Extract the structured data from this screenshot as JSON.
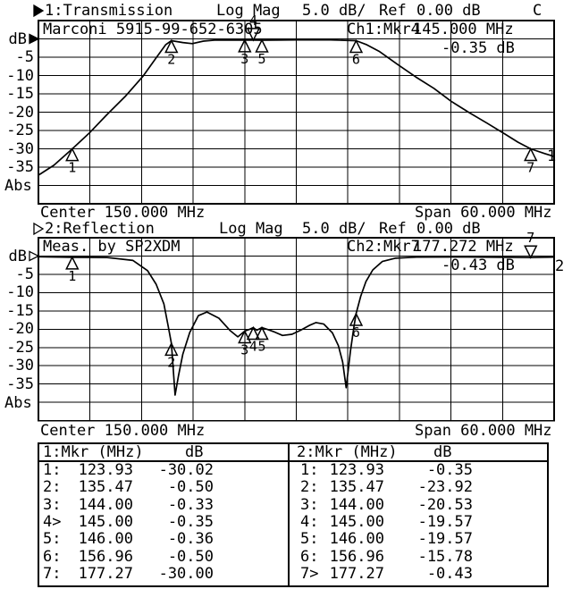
{
  "chart_data": [
    {
      "type": "line",
      "title": "1:Transmission",
      "format": "Log Mag",
      "scale_per_div": "5.0 dB/",
      "ref_label": "Ref",
      "ref_value": "0.00 dB",
      "corr_flag": "C",
      "channel_active": true,
      "annotation": "Marconi 5915-99-652-6305",
      "readout": {
        "id": "Ch1:Mkr4",
        "freq": "145.000 MHz",
        "level": "-0.35 dB"
      },
      "ylabel": "dB",
      "abs_label": "Abs",
      "yticks": [
        -5,
        -10,
        -15,
        -20,
        -25,
        -30,
        -35
      ],
      "y_top_dB": 5,
      "y_bottom_dB": -45,
      "scale_dB_per_div": 5,
      "x_range_MHz": [
        120,
        180
      ],
      "x_divisions": 10,
      "y_divisions": 10,
      "center_label": "Center 150.000 MHz",
      "span_label": "Span 60.000 MHz",
      "trace_number": "1",
      "markers": [
        {
          "n": "1",
          "MHz": 123.93,
          "dB": -30.02
        },
        {
          "n": "2",
          "MHz": 135.47,
          "dB": -0.5
        },
        {
          "n": "3",
          "MHz": 144.0,
          "dB": -0.33
        },
        {
          "n": "4",
          "MHz": 145.0,
          "dB": -0.35,
          "active": true
        },
        {
          "n": "5",
          "MHz": 146.0,
          "dB": -0.36
        },
        {
          "n": "6",
          "MHz": 156.96,
          "dB": -0.5
        },
        {
          "n": "7",
          "MHz": 177.27,
          "dB": -30.0
        }
      ],
      "trace": [
        [
          120,
          -37.2
        ],
        [
          121.8,
          -34.5
        ],
        [
          123.93,
          -30.02
        ],
        [
          126,
          -25.5
        ],
        [
          128,
          -20.6
        ],
        [
          130.1,
          -15.7
        ],
        [
          132.2,
          -10.1
        ],
        [
          133.7,
          -5.2
        ],
        [
          134.8,
          -1.6
        ],
        [
          135.47,
          -0.5
        ],
        [
          136.8,
          -1.0
        ],
        [
          137.9,
          -1.3
        ],
        [
          139.2,
          -0.6
        ],
        [
          140.5,
          -0.35
        ],
        [
          144,
          -0.33
        ],
        [
          145,
          -0.35
        ],
        [
          146,
          -0.36
        ],
        [
          150,
          -0.3
        ],
        [
          154,
          -0.3
        ],
        [
          156.96,
          -0.5
        ],
        [
          158.2,
          -1.6
        ],
        [
          159.7,
          -3.5
        ],
        [
          161.8,
          -7
        ],
        [
          163.9,
          -10.4
        ],
        [
          166,
          -13.5
        ],
        [
          168,
          -17
        ],
        [
          170.1,
          -20.1
        ],
        [
          172.2,
          -23
        ],
        [
          174.3,
          -26
        ],
        [
          175.8,
          -28.2
        ],
        [
          177.27,
          -30
        ],
        [
          178.9,
          -31.3
        ],
        [
          180,
          -32.1
        ]
      ]
    },
    {
      "type": "line",
      "title": "2:Reflection",
      "format": "Log Mag",
      "scale_per_div": "5.0 dB/",
      "ref_label": "Ref",
      "ref_value": "0.00 dB",
      "corr_flag": "",
      "channel_active": false,
      "annotation": "Meas. by SP2XDM",
      "readout": {
        "id": "Ch2:Mkr7",
        "freq": "177.272 MHz",
        "level": "-0.43 dB"
      },
      "ylabel": "dB",
      "abs_label": "Abs",
      "yticks": [
        -5,
        -10,
        -15,
        -20,
        -25,
        -30,
        -35
      ],
      "y_top_dB": 5,
      "y_bottom_dB": -45,
      "scale_dB_per_div": 5,
      "x_range_MHz": [
        120,
        180
      ],
      "x_divisions": 10,
      "y_divisions": 10,
      "center_label": "Center 150.000 MHz",
      "span_label": "Span 60.000 MHz",
      "trace_number": "2",
      "markers": [
        {
          "n": "1",
          "MHz": 123.93,
          "dB": -0.35
        },
        {
          "n": "2",
          "MHz": 135.47,
          "dB": -23.92
        },
        {
          "n": "3",
          "MHz": 144.0,
          "dB": -20.53
        },
        {
          "n": "4",
          "MHz": 145.0,
          "dB": -19.57
        },
        {
          "n": "5",
          "MHz": 146.0,
          "dB": -19.57
        },
        {
          "n": "6",
          "MHz": 156.96,
          "dB": -15.78
        },
        {
          "n": "7",
          "MHz": 177.27,
          "dB": -0.43,
          "active": true
        }
      ],
      "trace": [
        [
          120,
          -0.2
        ],
        [
          123.93,
          -0.35
        ],
        [
          128,
          -0.4
        ],
        [
          131,
          -1.2
        ],
        [
          132.7,
          -4
        ],
        [
          133.7,
          -7.7
        ],
        [
          134.6,
          -13.1
        ],
        [
          135.1,
          -19.2
        ],
        [
          135.47,
          -23.92
        ],
        [
          135.9,
          -38
        ],
        [
          136.3,
          -32.6
        ],
        [
          136.8,
          -26.8
        ],
        [
          137.6,
          -20.9
        ],
        [
          138.6,
          -16.3
        ],
        [
          139.6,
          -15.3
        ],
        [
          141,
          -17
        ],
        [
          142.3,
          -20.4
        ],
        [
          143.2,
          -22.1
        ],
        [
          144,
          -20.53
        ],
        [
          144.6,
          -20
        ],
        [
          145,
          -19.57
        ],
        [
          145.4,
          -20.3
        ],
        [
          146,
          -19.57
        ],
        [
          146.8,
          -20.2
        ],
        [
          147.5,
          -20.8
        ],
        [
          148.4,
          -21.7
        ],
        [
          149.5,
          -21.4
        ],
        [
          150.5,
          -20.3
        ],
        [
          151.5,
          -19
        ],
        [
          152.3,
          -18.2
        ],
        [
          153.2,
          -18.6
        ],
        [
          154.2,
          -21
        ],
        [
          154.9,
          -24.5
        ],
        [
          155.4,
          -29
        ],
        [
          155.8,
          -36
        ],
        [
          156.3,
          -26
        ],
        [
          156.7,
          -19.5
        ],
        [
          156.96,
          -15.78
        ],
        [
          157.5,
          -11
        ],
        [
          158.1,
          -7
        ],
        [
          158.9,
          -3.8
        ],
        [
          160,
          -1.5
        ],
        [
          161.5,
          -0.6
        ],
        [
          164,
          -0.3
        ],
        [
          170,
          -0.25
        ],
        [
          177.27,
          -0.43
        ],
        [
          180,
          -0.3
        ]
      ]
    }
  ],
  "marker_table": {
    "left": {
      "title": "1:Mkr (MHz)",
      "unit": "dB",
      "rows": [
        [
          "1:",
          "123.93",
          "-30.02"
        ],
        [
          "2:",
          "135.47",
          "-0.50"
        ],
        [
          "3:",
          "144.00",
          "-0.33"
        ],
        [
          "4>",
          "145.00",
          "-0.35"
        ],
        [
          "5:",
          "146.00",
          "-0.36"
        ],
        [
          "6:",
          "156.96",
          "-0.50"
        ],
        [
          "7:",
          "177.27",
          "-30.00"
        ]
      ]
    },
    "right": {
      "title": "2:Mkr (MHz)",
      "unit": "dB",
      "rows": [
        [
          "1:",
          "123.93",
          "-0.35"
        ],
        [
          "2:",
          "135.47",
          "-23.92"
        ],
        [
          "3:",
          "144.00",
          "-20.53"
        ],
        [
          "4:",
          "145.00",
          "-19.57"
        ],
        [
          "5:",
          "146.00",
          "-19.57"
        ],
        [
          "6:",
          "156.96",
          "-15.78"
        ],
        [
          "7>",
          "177.27",
          "-0.43"
        ]
      ]
    }
  },
  "colors": {
    "foreground": "#000000",
    "background": "#ffffff"
  }
}
